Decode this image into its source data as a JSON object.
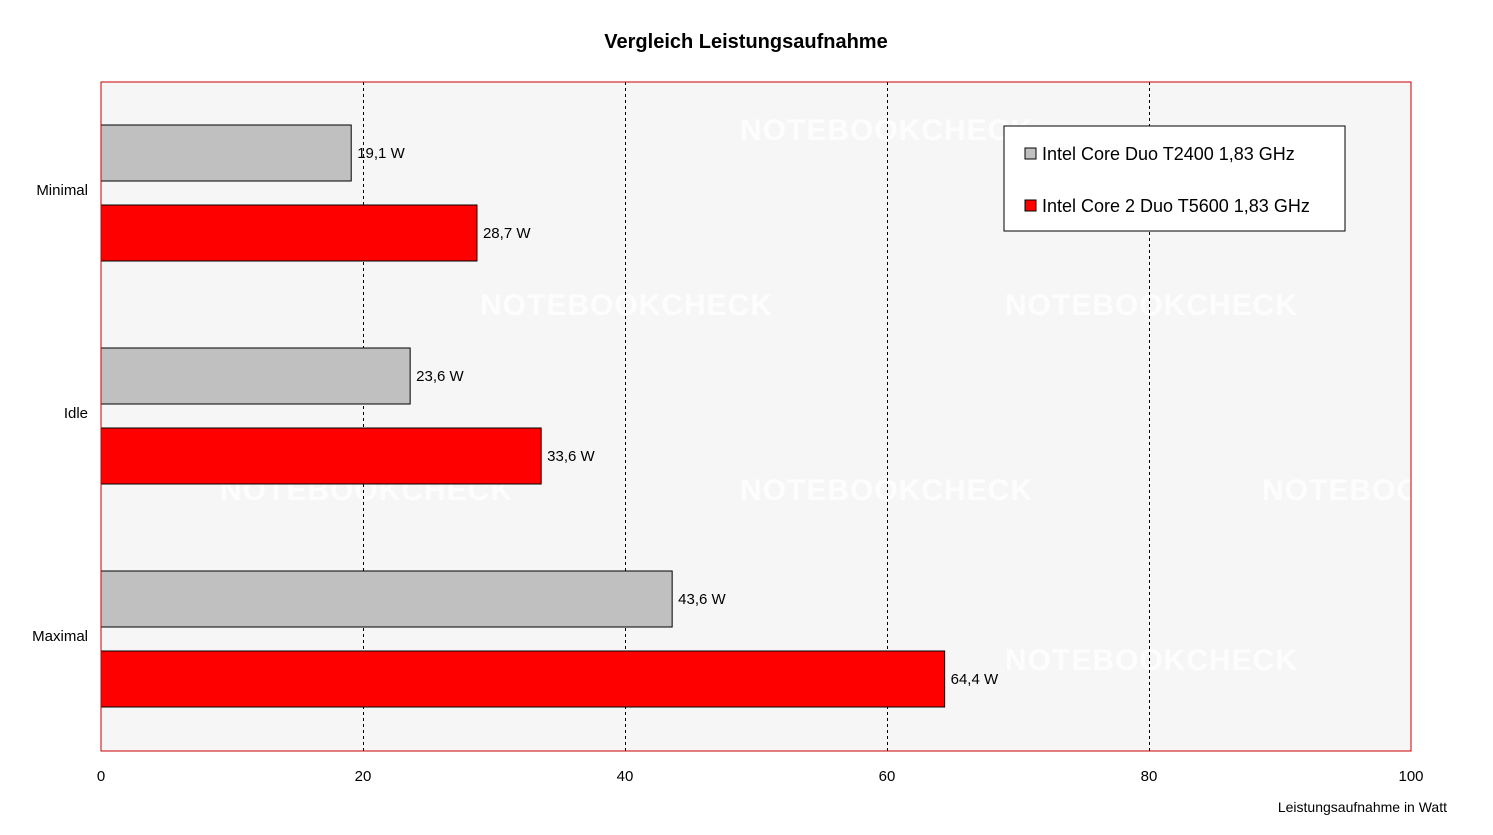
{
  "chart_data": {
    "type": "bar",
    "orientation": "horizontal",
    "title": "Vergleich Leistungsaufnahme",
    "xlabel": "Leistungsaufnahme in Watt",
    "ylabel": "",
    "categories": [
      "Minimal",
      "Idle",
      "Maximal"
    ],
    "series": [
      {
        "name": "Intel Core Duo T2400 1,83 GHz",
        "color": "#c0c0c0",
        "values": [
          19.1,
          23.6,
          43.6
        ],
        "labels": [
          "19,1 W",
          "23,6 W",
          "43,6 W"
        ]
      },
      {
        "name": "Intel Core 2 Duo T5600 1,83 GHz",
        "color": "#ff0000",
        "values": [
          28.7,
          33.6,
          64.4
        ],
        "labels": [
          "28,7 W",
          "33,6 W",
          "64,4 W"
        ]
      }
    ],
    "xlim": [
      0,
      100
    ],
    "xticks": [
      0,
      20,
      40,
      60,
      80,
      100
    ],
    "xtick_labels": [
      "0",
      "20",
      "40",
      "60",
      "80",
      "100"
    ],
    "grid": "vertical-dashed",
    "legend_position": "top-right",
    "plot_border_color": "#cc0000",
    "plot_background": "#f6f6f6",
    "watermark": "NOTEBOOKCHECK"
  }
}
